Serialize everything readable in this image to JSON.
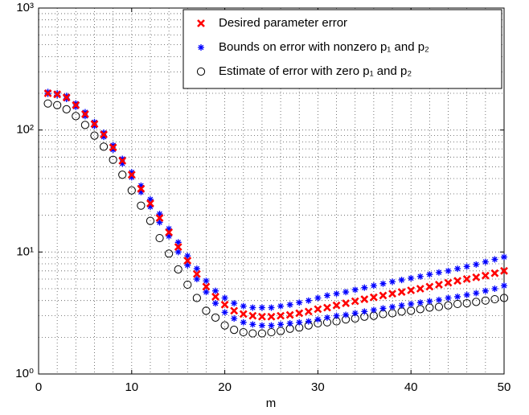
{
  "chart_data": {
    "type": "scatter",
    "log_y": true,
    "grid": true,
    "legend_position": "upper right",
    "xlabel": "m",
    "xlim": [
      0,
      50
    ],
    "xticks": [
      0,
      10,
      20,
      30,
      40,
      50
    ],
    "ylim": [
      1,
      1000
    ],
    "yticks": [
      {
        "value": 1,
        "label": "10⁰"
      },
      {
        "value": 10,
        "label": "10¹"
      },
      {
        "value": 100,
        "label": "10²"
      },
      {
        "value": 1000,
        "label": "10³"
      }
    ],
    "x": [
      1,
      2,
      3,
      4,
      5,
      6,
      7,
      8,
      9,
      10,
      11,
      12,
      13,
      14,
      15,
      16,
      17,
      18,
      19,
      20,
      21,
      22,
      23,
      24,
      25,
      26,
      27,
      28,
      29,
      30,
      31,
      32,
      33,
      34,
      35,
      36,
      37,
      38,
      39,
      40,
      41,
      42,
      43,
      44,
      45,
      46,
      47,
      48,
      49,
      50
    ],
    "series": [
      {
        "name": "Desired parameter error",
        "color": "#ff0000",
        "marker": "x",
        "values": [
          200,
          196,
          185,
          160,
          135,
          112,
          92,
          72,
          56,
          43,
          33,
          25,
          19,
          14.5,
          11,
          8.5,
          6.6,
          5.2,
          4.3,
          3.7,
          3.3,
          3.1,
          3.0,
          2.95,
          2.95,
          3.0,
          3.05,
          3.15,
          3.25,
          3.4,
          3.5,
          3.65,
          3.8,
          3.95,
          4.1,
          4.25,
          4.4,
          4.55,
          4.7,
          4.85,
          5.0,
          5.2,
          5.4,
          5.6,
          5.8,
          6.0,
          6.2,
          6.4,
          6.7,
          7.0
        ]
      },
      {
        "name": "Bounds on error with nonzero p₁ and p₂",
        "color": "#0000ff",
        "marker": "*",
        "values": [
          205,
          200,
          190,
          165,
          140,
          116,
          95,
          75,
          58,
          45,
          35,
          27,
          20.5,
          15.5,
          12,
          9.3,
          7.3,
          5.8,
          4.8,
          4.2,
          3.8,
          3.6,
          3.5,
          3.5,
          3.5,
          3.6,
          3.7,
          3.85,
          4.0,
          4.2,
          4.4,
          4.55,
          4.7,
          4.9,
          5.1,
          5.3,
          5.5,
          5.7,
          5.9,
          6.1,
          6.3,
          6.55,
          6.8,
          7.0,
          7.3,
          7.6,
          7.9,
          8.3,
          8.7,
          9.1
        ]
      },
      {
        "color": "#0000ff",
        "marker": "*",
        "values": [
          198,
          193,
          180,
          155,
          130,
          108,
          88,
          69,
          53,
          41,
          31,
          23.5,
          17.5,
          13.5,
          10,
          7.8,
          6.0,
          4.7,
          3.8,
          3.2,
          2.85,
          2.65,
          2.55,
          2.5,
          2.5,
          2.55,
          2.6,
          2.65,
          2.7,
          2.8,
          2.9,
          3.0,
          3.05,
          3.15,
          3.25,
          3.35,
          3.45,
          3.55,
          3.65,
          3.75,
          3.85,
          3.95,
          4.05,
          4.2,
          4.3,
          4.45,
          4.6,
          4.8,
          5.0,
          5.3
        ]
      },
      {
        "name": "Estimate of error with zero p₁ and p₂",
        "color": "#000000",
        "marker": "o",
        "values": [
          165,
          160,
          148,
          130,
          110,
          90,
          73,
          57,
          43,
          32,
          24,
          18,
          13,
          9.7,
          7.2,
          5.4,
          4.2,
          3.3,
          2.9,
          2.5,
          2.3,
          2.2,
          2.15,
          2.15,
          2.2,
          2.25,
          2.35,
          2.4,
          2.5,
          2.6,
          2.65,
          2.7,
          2.8,
          2.85,
          2.95,
          3.0,
          3.1,
          3.15,
          3.25,
          3.3,
          3.4,
          3.5,
          3.55,
          3.65,
          3.75,
          3.8,
          3.9,
          4.0,
          4.1,
          4.2
        ]
      }
    ]
  }
}
